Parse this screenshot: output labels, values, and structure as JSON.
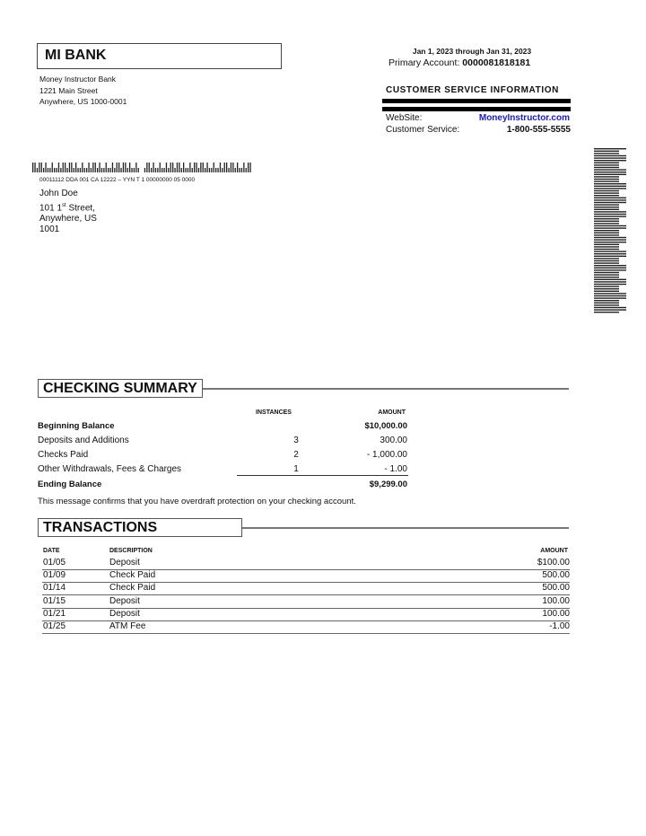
{
  "bank": {
    "name": "MI BANK",
    "address": [
      "Money Instructor Bank",
      "1221 Main Street",
      "Anywhere, US 1000-0001"
    ]
  },
  "statement": {
    "period": "Jan 1, 2023 through Jan 31, 2023",
    "account_label": "Primary Account:",
    "account_number": "0000081818181"
  },
  "customer_service": {
    "title": "CUSTOMER SERVICE  INFORMATION",
    "website_label": "WebSite:",
    "website": "MoneyInstructor.com",
    "phone_label": "Customer Service:",
    "phone": "1-800-555-5555",
    "link_color": "#1a1acc"
  },
  "mailing": {
    "code_line": "00011112 DDA 001 CA 12222 – YYN T 1 00000000 05 0000",
    "name": "John Doe",
    "street_num": "101 1",
    "street_sup": "st",
    "street_rest": " Street,",
    "city": "Anywhere, US",
    "zip": "1001"
  },
  "summary": {
    "title": "CHECKING SUMMARY",
    "col_instances": "INSTANCES",
    "col_amount": "AMOUNT",
    "rows": [
      {
        "label": "Beginning Balance",
        "instances": "",
        "amount": "$10,000.00",
        "bold": true
      },
      {
        "label": "Deposits and Additions",
        "instances": "3",
        "amount": "300.00"
      },
      {
        "label": "Checks Paid",
        "instances": "2",
        "amount": "- 1,000.00"
      },
      {
        "label": "Other Withdrawals, Fees & Charges",
        "instances": "1",
        "amount": "- 1.00"
      },
      {
        "label": "Ending Balance",
        "instances": "",
        "amount": "$9,299.00",
        "bold": true
      }
    ],
    "message": "This message confirms that you have overdraft protection on your checking account."
  },
  "transactions": {
    "title": "TRANSACTIONS",
    "col_date": "DATE",
    "col_description": "DESCRIPTION",
    "col_amount": "AMOUNT",
    "rows": [
      {
        "date": "01/05",
        "description": "Deposit",
        "amount": "$100.00"
      },
      {
        "date": "01/09",
        "description": "Check Paid",
        "amount": "500.00"
      },
      {
        "date": "01/14",
        "description": "Check Paid",
        "amount": "500.00"
      },
      {
        "date": "01/15",
        "description": "Deposit",
        "amount": "100.00"
      },
      {
        "date": "01/21",
        "description": "Deposit",
        "amount": "100.00"
      },
      {
        "date": "01/25",
        "description": "ATM Fee",
        "amount": "-1.00"
      }
    ]
  }
}
